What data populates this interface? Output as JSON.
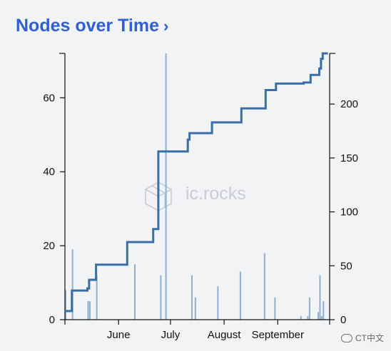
{
  "header": {
    "title": "Nodes over Time",
    "chevron": "›"
  },
  "watermark": {
    "text": "ic.rocks",
    "icon": "cube-logo-icon"
  },
  "corner_watermark": {
    "text": "CT中文",
    "icon": "wechat-icon"
  },
  "colors": {
    "title": "#2f5fd0",
    "line": "#3a6fa5",
    "bars": "#8fb0cc"
  },
  "chart_data": {
    "type": "line+bar",
    "x_axis": {
      "type": "date",
      "range": [
        "2021-05-01",
        "2021-10-01"
      ],
      "ticks": [
        {
          "label": "June",
          "date": "2021-06-01"
        },
        {
          "label": "July",
          "date": "2021-07-01"
        },
        {
          "label": "August",
          "date": "2021-08-01"
        },
        {
          "label": "September",
          "date": "2021-09-01"
        }
      ]
    },
    "left_axis": {
      "range": [
        0,
        72
      ],
      "ticks": [
        0,
        20,
        40,
        60
      ]
    },
    "right_axis": {
      "range": [
        0,
        247
      ],
      "ticks": [
        0,
        50,
        100,
        150,
        200
      ]
    },
    "bars": {
      "name": "",
      "axis": "left",
      "points": [
        {
          "x": "2021-05-01",
          "y": 8
        },
        {
          "x": "2021-05-05",
          "y": 19
        },
        {
          "x": "2021-05-14",
          "y": 5
        },
        {
          "x": "2021-05-15",
          "y": 5
        },
        {
          "x": "2021-05-19",
          "y": 12
        },
        {
          "x": "2021-06-10",
          "y": 15
        },
        {
          "x": "2021-06-25",
          "y": 12
        },
        {
          "x": "2021-06-28",
          "y": 72
        },
        {
          "x": "2021-07-13",
          "y": 12
        },
        {
          "x": "2021-07-15",
          "y": 6
        },
        {
          "x": "2021-07-28",
          "y": 9
        },
        {
          "x": "2021-08-10",
          "y": 13
        },
        {
          "x": "2021-08-24",
          "y": 18
        },
        {
          "x": "2021-08-30",
          "y": 6
        },
        {
          "x": "2021-09-14",
          "y": 1
        },
        {
          "x": "2021-09-18",
          "y": 1
        },
        {
          "x": "2021-09-19",
          "y": 6
        },
        {
          "x": "2021-09-24",
          "y": 2
        },
        {
          "x": "2021-09-25",
          "y": 12
        },
        {
          "x": "2021-09-26",
          "y": 1
        },
        {
          "x": "2021-09-27",
          "y": 5
        }
      ]
    },
    "series": [
      {
        "name": "",
        "type": "step-line",
        "axis": "right",
        "points": [
          {
            "x": "2021-05-01",
            "y": 8
          },
          {
            "x": "2021-05-05",
            "y": 27
          },
          {
            "x": "2021-05-14",
            "y": 29
          },
          {
            "x": "2021-05-15",
            "y": 32
          },
          {
            "x": "2021-05-15",
            "y": 37
          },
          {
            "x": "2021-05-19",
            "y": 51
          },
          {
            "x": "2021-06-05",
            "y": 51
          },
          {
            "x": "2021-06-06",
            "y": 72
          },
          {
            "x": "2021-06-20",
            "y": 72
          },
          {
            "x": "2021-06-21",
            "y": 84
          },
          {
            "x": "2021-06-24",
            "y": 84
          },
          {
            "x": "2021-06-24",
            "y": 156
          },
          {
            "x": "2021-07-10",
            "y": 156
          },
          {
            "x": "2021-07-11",
            "y": 167
          },
          {
            "x": "2021-07-12",
            "y": 173
          },
          {
            "x": "2021-07-25",
            "y": 173
          },
          {
            "x": "2021-07-25",
            "y": 183
          },
          {
            "x": "2021-08-11",
            "y": 183
          },
          {
            "x": "2021-08-11",
            "y": 196
          },
          {
            "x": "2021-08-24",
            "y": 196
          },
          {
            "x": "2021-08-25",
            "y": 213
          },
          {
            "x": "2021-08-31",
            "y": 213
          },
          {
            "x": "2021-08-31",
            "y": 219
          },
          {
            "x": "2021-09-15",
            "y": 219
          },
          {
            "x": "2021-09-16",
            "y": 220
          },
          {
            "x": "2021-09-19",
            "y": 220
          },
          {
            "x": "2021-09-20",
            "y": 227
          },
          {
            "x": "2021-09-24",
            "y": 227
          },
          {
            "x": "2021-09-25",
            "y": 233
          },
          {
            "x": "2021-09-26",
            "y": 242
          },
          {
            "x": "2021-09-27",
            "y": 247
          },
          {
            "x": "2021-09-30",
            "y": 247
          }
        ]
      }
    ],
    "title": "",
    "xlabel": "",
    "ylabel": "",
    "grid": false,
    "legend": "none"
  }
}
